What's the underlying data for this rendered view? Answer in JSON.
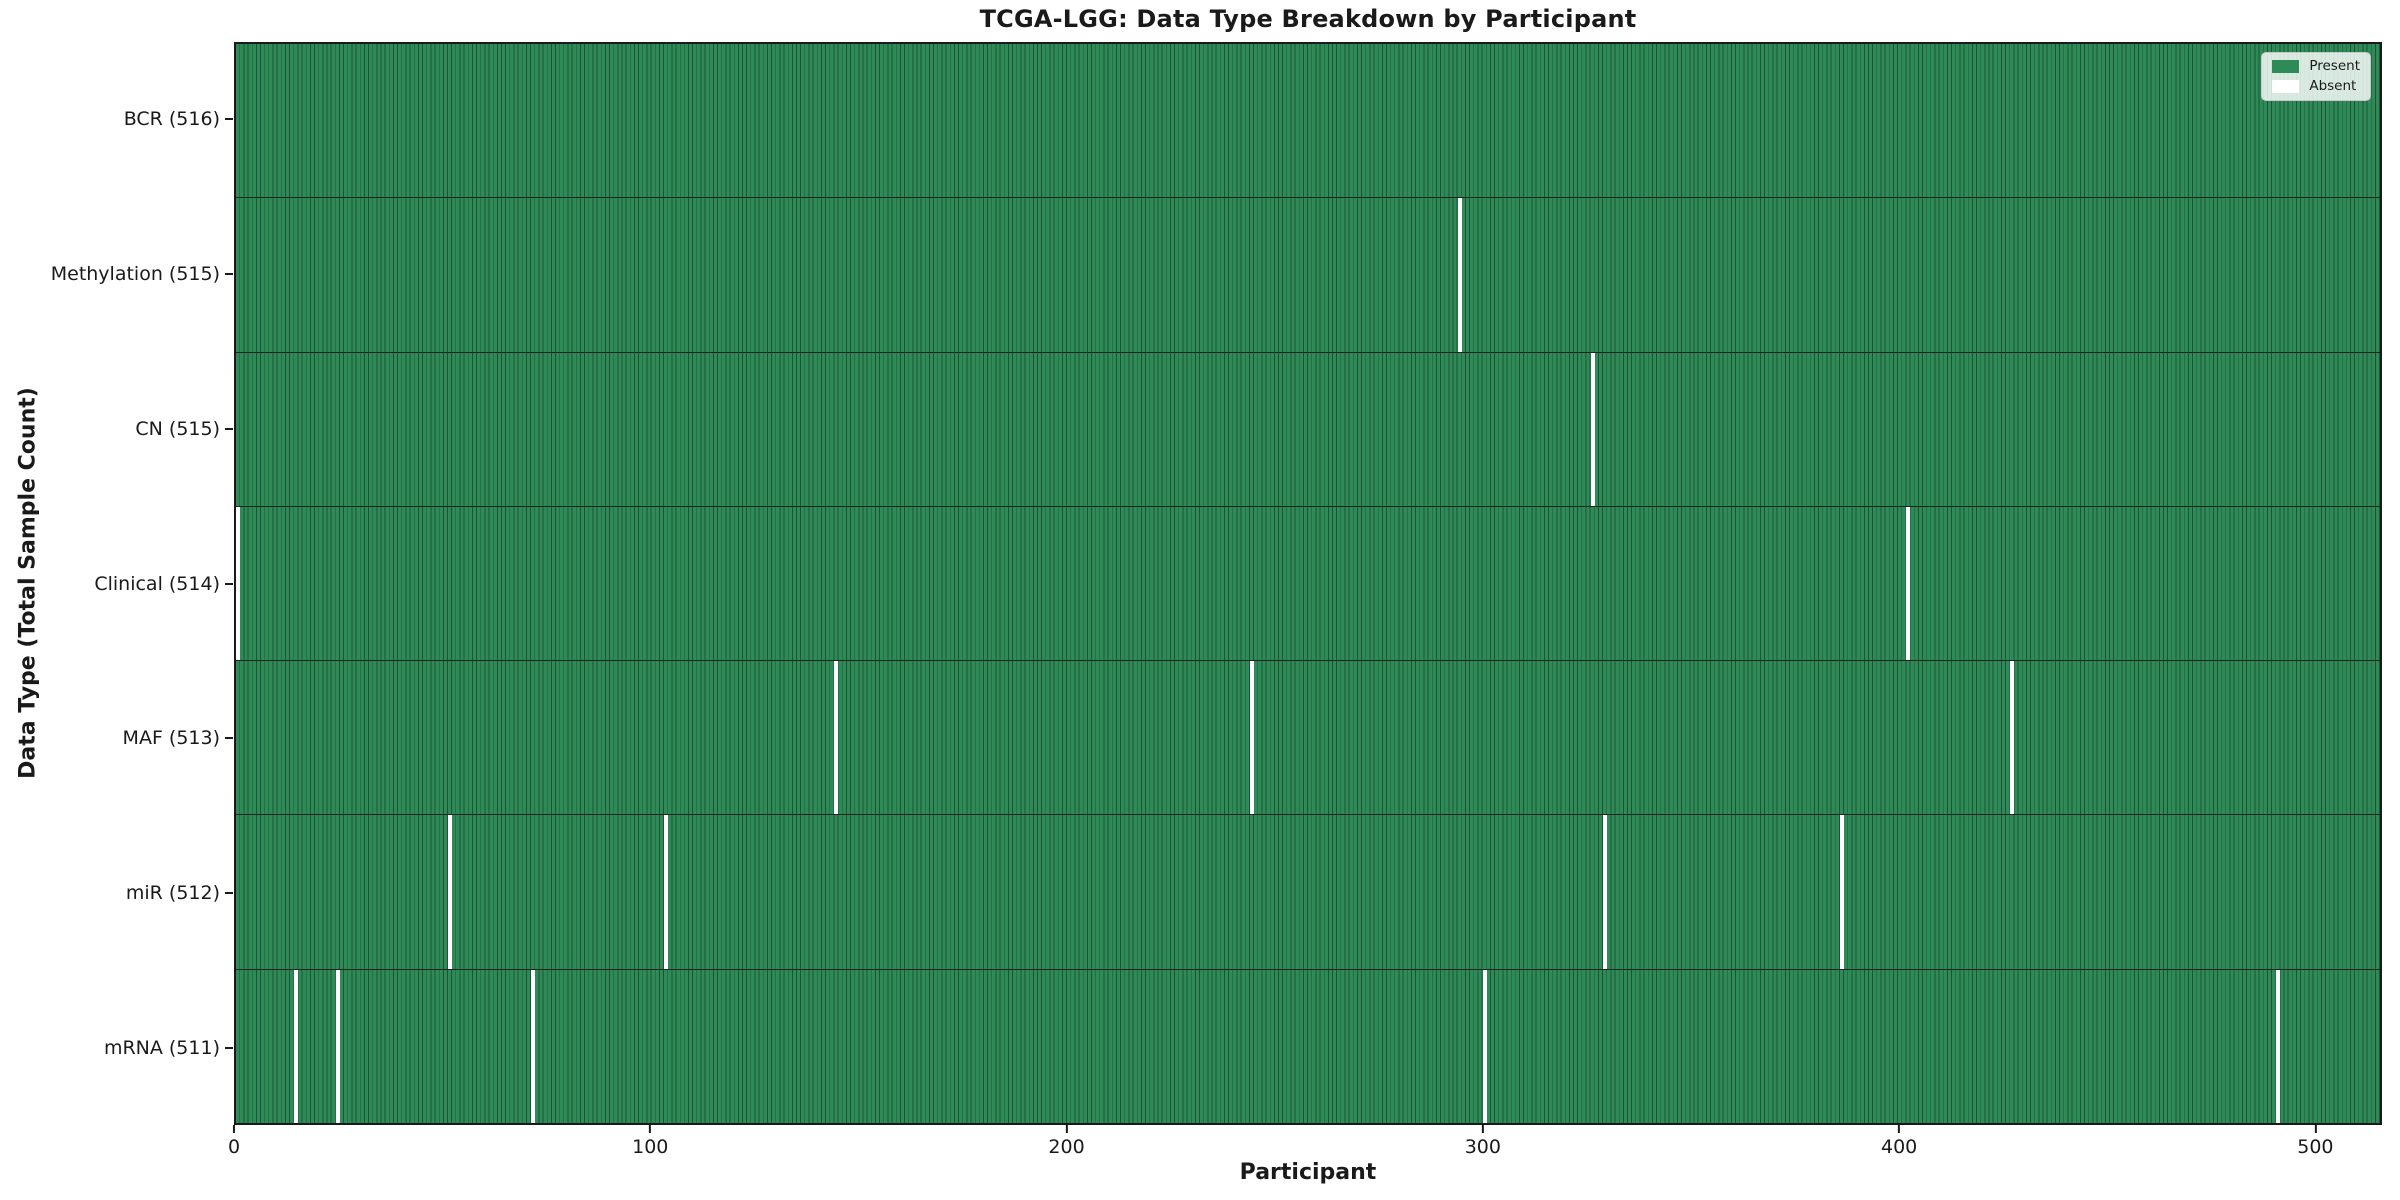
{
  "chart_data": {
    "type": "heatmap",
    "title": "TCGA-LGG: Data Type Breakdown by Participant",
    "xlabel": "Participant",
    "ylabel": "Data Type (Total Sample Count)",
    "x_ticks": [
      0,
      100,
      200,
      300,
      400,
      500
    ],
    "xlim": [
      0,
      516
    ],
    "n_participants": 516,
    "grid": false,
    "legend": {
      "position": "upper right",
      "entries": [
        {
          "label": "Present",
          "color": "#2e8b57"
        },
        {
          "label": "Absent",
          "color": "#ffffff"
        }
      ]
    },
    "rows": [
      {
        "label": "BCR (516)",
        "data_type": "BCR",
        "total_samples": 516,
        "absent_participants": []
      },
      {
        "label": "Methylation (515)",
        "data_type": "Methylation",
        "total_samples": 515,
        "absent_participants": [
          294
        ]
      },
      {
        "label": "CN (515)",
        "data_type": "CN",
        "total_samples": 515,
        "absent_participants": [
          326
        ]
      },
      {
        "label": "Clinical (514)",
        "data_type": "Clinical",
        "total_samples": 514,
        "absent_participants": [
          0,
          402
        ]
      },
      {
        "label": "MAF (513)",
        "data_type": "MAF",
        "total_samples": 513,
        "absent_participants": [
          144,
          244,
          427
        ]
      },
      {
        "label": "miR (512)",
        "data_type": "miR",
        "total_samples": 512,
        "absent_participants": [
          51,
          103,
          329,
          386
        ]
      },
      {
        "label": "mRNA (511)",
        "data_type": "mRNA",
        "total_samples": 511,
        "absent_participants": [
          14,
          24,
          71,
          300,
          491
        ]
      }
    ],
    "colors": {
      "present": "#2e8b57",
      "cell_edge": "#1c5435",
      "row_divider": "#1b241e",
      "absent": "#ffffff",
      "spine": "#1a1a1a",
      "text": "#1a1a1a"
    }
  }
}
